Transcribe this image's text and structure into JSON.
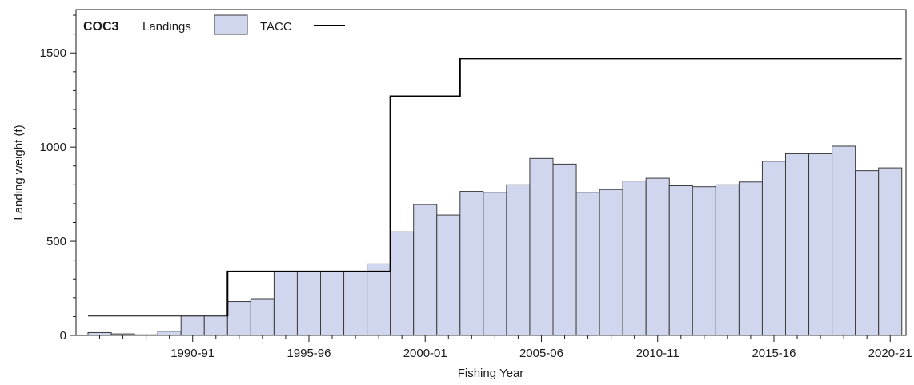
{
  "chart_data": {
    "type": "bar",
    "title": "COC3",
    "xlabel": "Fishing Year",
    "ylabel": "Landing weight (t)",
    "ylim": [
      0,
      1730
    ],
    "yticks": [
      0,
      500,
      1000,
      1500
    ],
    "xtick_labels": [
      "1990-91",
      "1995-96",
      "2000-01",
      "2005-06",
      "2010-11",
      "2015-16",
      "2020-21"
    ],
    "grid": false,
    "legend_position": "top-left",
    "legend": {
      "landings_label": "Landings",
      "tacc_label": "TACC"
    },
    "colors": {
      "bar_fill": "#d0d6ee",
      "bar_stroke": "#3a3a3a",
      "tacc_line": "#000000"
    },
    "categories": [
      "1986-87",
      "1987-88",
      "1988-89",
      "1989-90",
      "1990-91",
      "1991-92",
      "1992-93",
      "1993-94",
      "1994-95",
      "1995-96",
      "1996-97",
      "1997-98",
      "1998-99",
      "1999-00",
      "2000-01",
      "2001-02",
      "2002-03",
      "2003-04",
      "2004-05",
      "2005-06",
      "2006-07",
      "2007-08",
      "2008-09",
      "2009-10",
      "2010-11",
      "2011-12",
      "2012-13",
      "2013-14",
      "2014-15",
      "2015-16",
      "2016-17",
      "2017-18",
      "2018-19",
      "2019-20",
      "2020-21"
    ],
    "series": [
      {
        "name": "Landings",
        "values": [
          15,
          8,
          3,
          22,
          105,
          105,
          180,
          195,
          340,
          340,
          340,
          340,
          380,
          550,
          695,
          640,
          765,
          760,
          800,
          940,
          910,
          760,
          775,
          820,
          835,
          795,
          790,
          800,
          815,
          925,
          965,
          965,
          1005,
          875,
          890
        ]
      },
      {
        "name": "TACC",
        "values": [
          105,
          105,
          105,
          105,
          105,
          105,
          340,
          340,
          340,
          340,
          340,
          340,
          340,
          1270,
          1270,
          1270,
          1470,
          1470,
          1470,
          1470,
          1470,
          1470,
          1470,
          1470,
          1470,
          1470,
          1470,
          1470,
          1470,
          1470,
          1470,
          1470,
          1470,
          1470,
          1470
        ]
      }
    ]
  }
}
